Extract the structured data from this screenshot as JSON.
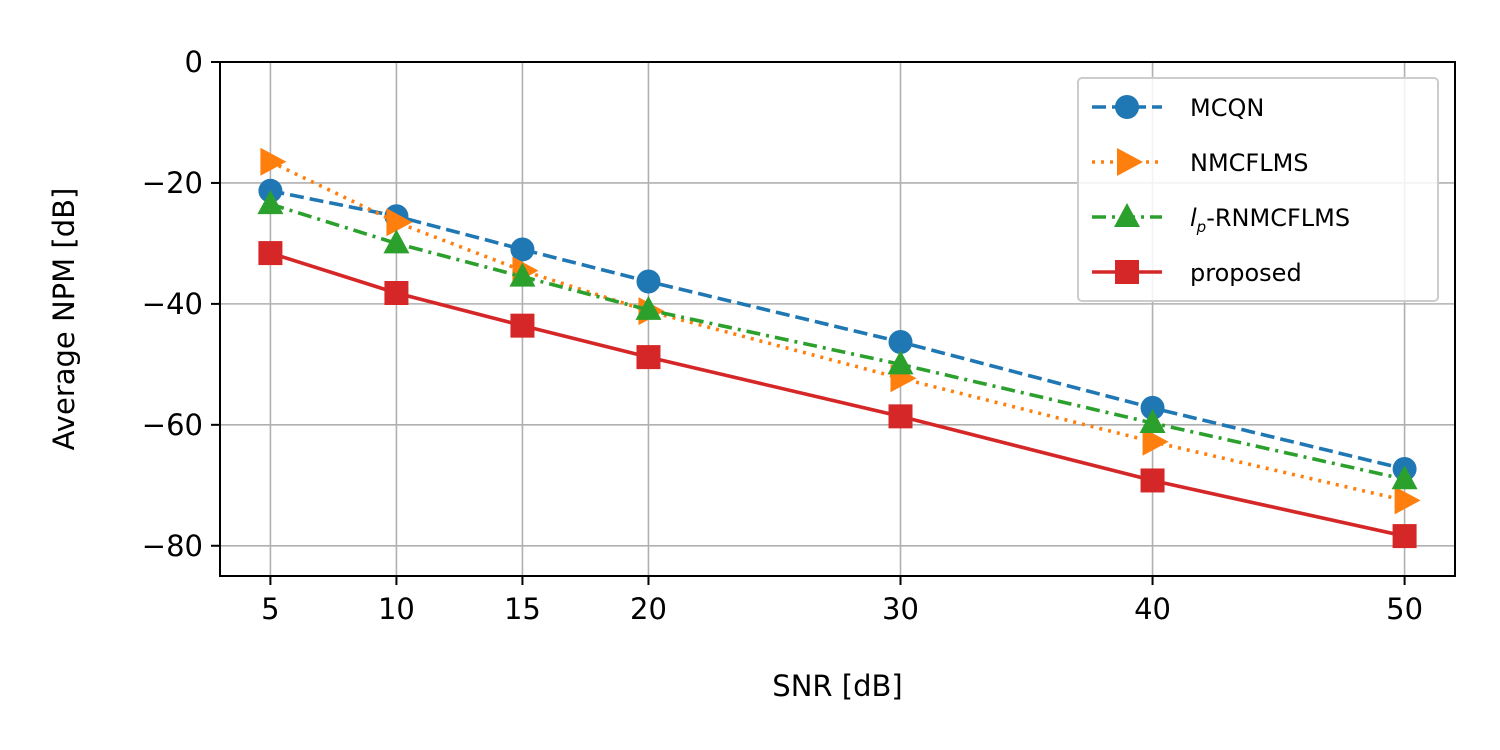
{
  "chart_data": {
    "type": "line",
    "xlabel": "SNR [dB]",
    "ylabel": "Average NPM [dB]",
    "x": [
      5,
      10,
      15,
      20,
      30,
      40,
      50
    ],
    "xticks": [
      5,
      10,
      15,
      20,
      30,
      40,
      50
    ],
    "yticks": [
      0,
      -20,
      -40,
      -60,
      -80
    ],
    "xticklabels": [
      "5",
      "10",
      "15",
      "20",
      "30",
      "40",
      "50"
    ],
    "yticklabels": [
      "0",
      "−20",
      "−40",
      "−60",
      "−80"
    ],
    "xlim": [
      3,
      52
    ],
    "ylim": [
      -85,
      0
    ],
    "grid": true,
    "legend_position": "top-right",
    "series": [
      {
        "name": "MCQN",
        "color": "#1f77b4",
        "marker": "circle",
        "linestyle": "dashed",
        "values": [
          -21.3,
          -25.5,
          -31,
          -36.3,
          -46.3,
          -57.2,
          -67.3
        ]
      },
      {
        "name": "NMCFLMS",
        "color": "#ff7f0e",
        "marker": "triangle-right",
        "linestyle": "dotted",
        "values": [
          -16.5,
          -26.5,
          -34.5,
          -41.2,
          -52.3,
          -62.8,
          -72.5
        ]
      },
      {
        "name": "lp-RNMCFLMS",
        "name_base": "l",
        "name_sub": "p",
        "name_rest": "-RNMCFLMS",
        "color": "#2ca02c",
        "marker": "triangle-up",
        "linestyle": "dashdot",
        "values": [
          -23.5,
          -30,
          -35.5,
          -41,
          -50,
          -59.7,
          -69
        ]
      },
      {
        "name": "proposed",
        "color": "#d62728",
        "marker": "square",
        "linestyle": "solid",
        "values": [
          -31.6,
          -38.2,
          -43.6,
          -48.8,
          -58.6,
          -69.2,
          -78.4
        ]
      }
    ]
  }
}
